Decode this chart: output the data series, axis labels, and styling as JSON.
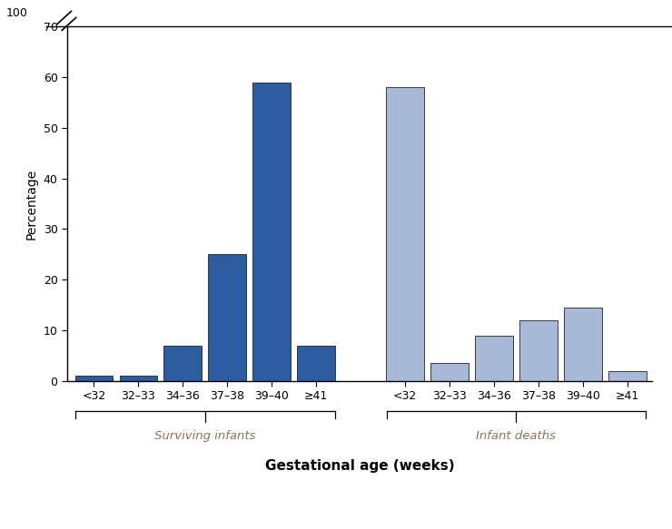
{
  "surviving_labels": [
    "<32",
    "32–33",
    "34–36",
    "37–38",
    "39–40",
    "≥41"
  ],
  "surviving_values": [
    1,
    1,
    7,
    25,
    59,
    7
  ],
  "deaths_labels": [
    "<32",
    "32–33",
    "34–36",
    "37–38",
    "39–40",
    "≥41"
  ],
  "deaths_values": [
    58,
    3.5,
    9,
    12,
    14.5,
    2
  ],
  "surviving_color": "#2B5DA0",
  "deaths_color": "#A8B8D8",
  "bar_edge_color": "#222222",
  "ylabel": "Percentage",
  "xlabel": "Gestational age (weeks)",
  "group_label_surviving": "Surviving infants",
  "group_label_deaths": "Infant deaths",
  "yticks": [
    0,
    10,
    20,
    30,
    40,
    50,
    60,
    70
  ],
  "ytick_top": 100,
  "ylim": [
    0,
    70
  ],
  "label_color": "#B8860B",
  "background_color": "#ffffff"
}
